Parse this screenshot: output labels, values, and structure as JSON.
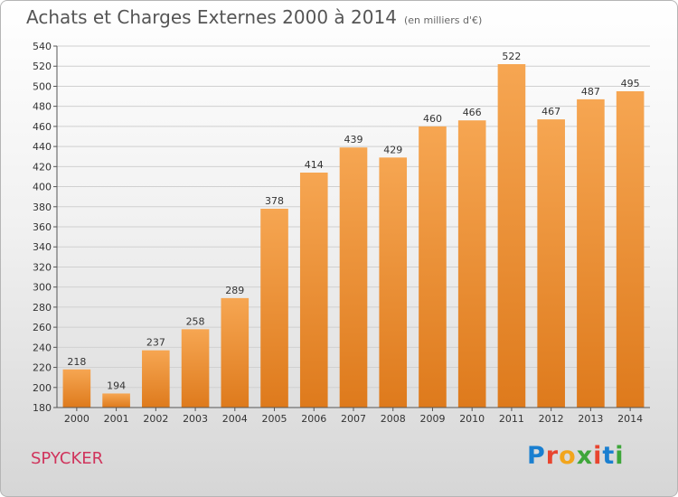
{
  "page": {
    "title": "Achats et Charges Externes 2000 à 2014",
    "unit": "(en milliers d'€)",
    "commune": "SPYCKER",
    "logo": "Proxiti",
    "logo_colors": [
      "#1a7fd0",
      "#e8452f",
      "#f2a51c",
      "#3ea63a",
      "#e8452f",
      "#1a7fd0",
      "#3ea63a"
    ]
  },
  "chart_data": {
    "type": "bar",
    "categories": [
      "2000",
      "2001",
      "2002",
      "2003",
      "2004",
      "2005",
      "2006",
      "2007",
      "2008",
      "2009",
      "2010",
      "2011",
      "2012",
      "2013",
      "2014"
    ],
    "values": [
      218,
      194,
      237,
      258,
      289,
      378,
      414,
      439,
      429,
      460,
      466,
      522,
      467,
      487,
      495
    ],
    "ylim": [
      180,
      540
    ],
    "yticks": [
      180,
      200,
      220,
      240,
      260,
      280,
      300,
      320,
      340,
      360,
      380,
      400,
      420,
      440,
      460,
      480,
      500,
      520,
      540
    ],
    "grid": true,
    "bar_color_light": "#f6a652",
    "bar_color_dark": "#de7a1c"
  }
}
